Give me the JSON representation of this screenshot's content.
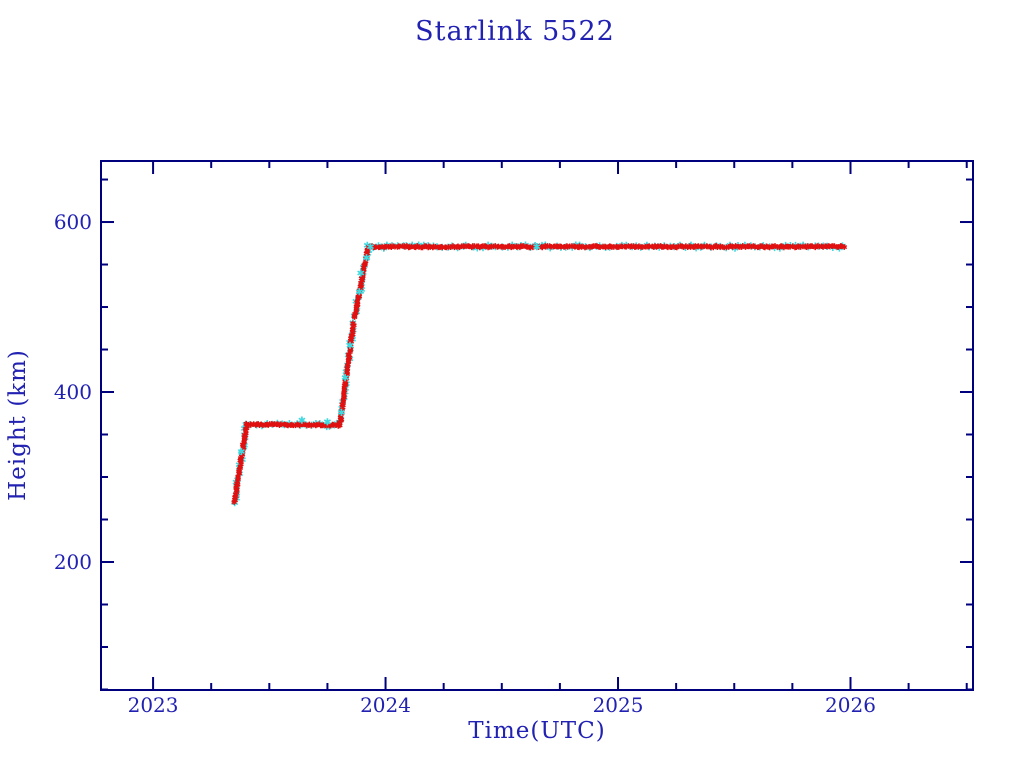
{
  "title": {
    "text": "Starlink 5522"
  },
  "colors": {
    "frame": "#00007d",
    "label_text": "#2121b2",
    "background": "#ffffff",
    "series_primary": "#e01010",
    "series_secondary": "#3fd9e0"
  },
  "chart_data": {
    "type": "scatter",
    "title": "Starlink 5522",
    "xlabel": "Time(UTC)",
    "ylabel": "Height (km)",
    "xlim": [
      2022.776,
      2026.527
    ],
    "ylim": [
      49.4,
      671.8
    ],
    "x_major_ticks": [
      2023,
      2024,
      2025,
      2026
    ],
    "x_minor_tick_step": 0.25,
    "y_major_ticks": [
      200,
      400,
      600
    ],
    "y_minor_tick_step": 50,
    "grid": false,
    "legend": null,
    "series": [
      {
        "name": "height-secondary",
        "color": "#3fd9e0",
        "marker": "asterisk",
        "layer": "under",
        "segments": [
          [
            2023.35,
            270,
            2023.402,
            362
          ],
          [
            2023.402,
            362,
            2023.805,
            361
          ],
          [
            2023.805,
            364,
            2023.862,
            480
          ],
          [
            2023.866,
            488,
            2023.925,
            568
          ],
          [
            2023.925,
            571,
            2025.97,
            571
          ]
        ],
        "points": [
          [
            2023.38,
            330
          ],
          [
            2023.64,
            367
          ],
          [
            2023.75,
            365
          ],
          [
            2023.81,
            376
          ],
          [
            2023.826,
            417
          ],
          [
            2023.847,
            455
          ],
          [
            2023.887,
            518
          ],
          [
            2023.893,
            540
          ],
          [
            2023.918,
            558
          ],
          [
            2023.935,
            571
          ],
          [
            2024.65,
            571
          ]
        ]
      },
      {
        "name": "height-primary",
        "color": "#e01010",
        "marker": "asterisk",
        "layer": "over",
        "segments": [
          [
            2023.35,
            270,
            2023.402,
            362
          ],
          [
            2023.402,
            362,
            2023.805,
            361
          ],
          [
            2023.805,
            364,
            2023.862,
            480
          ],
          [
            2023.866,
            488,
            2023.925,
            568
          ],
          [
            2023.925,
            571,
            2025.97,
            571
          ]
        ]
      }
    ]
  }
}
